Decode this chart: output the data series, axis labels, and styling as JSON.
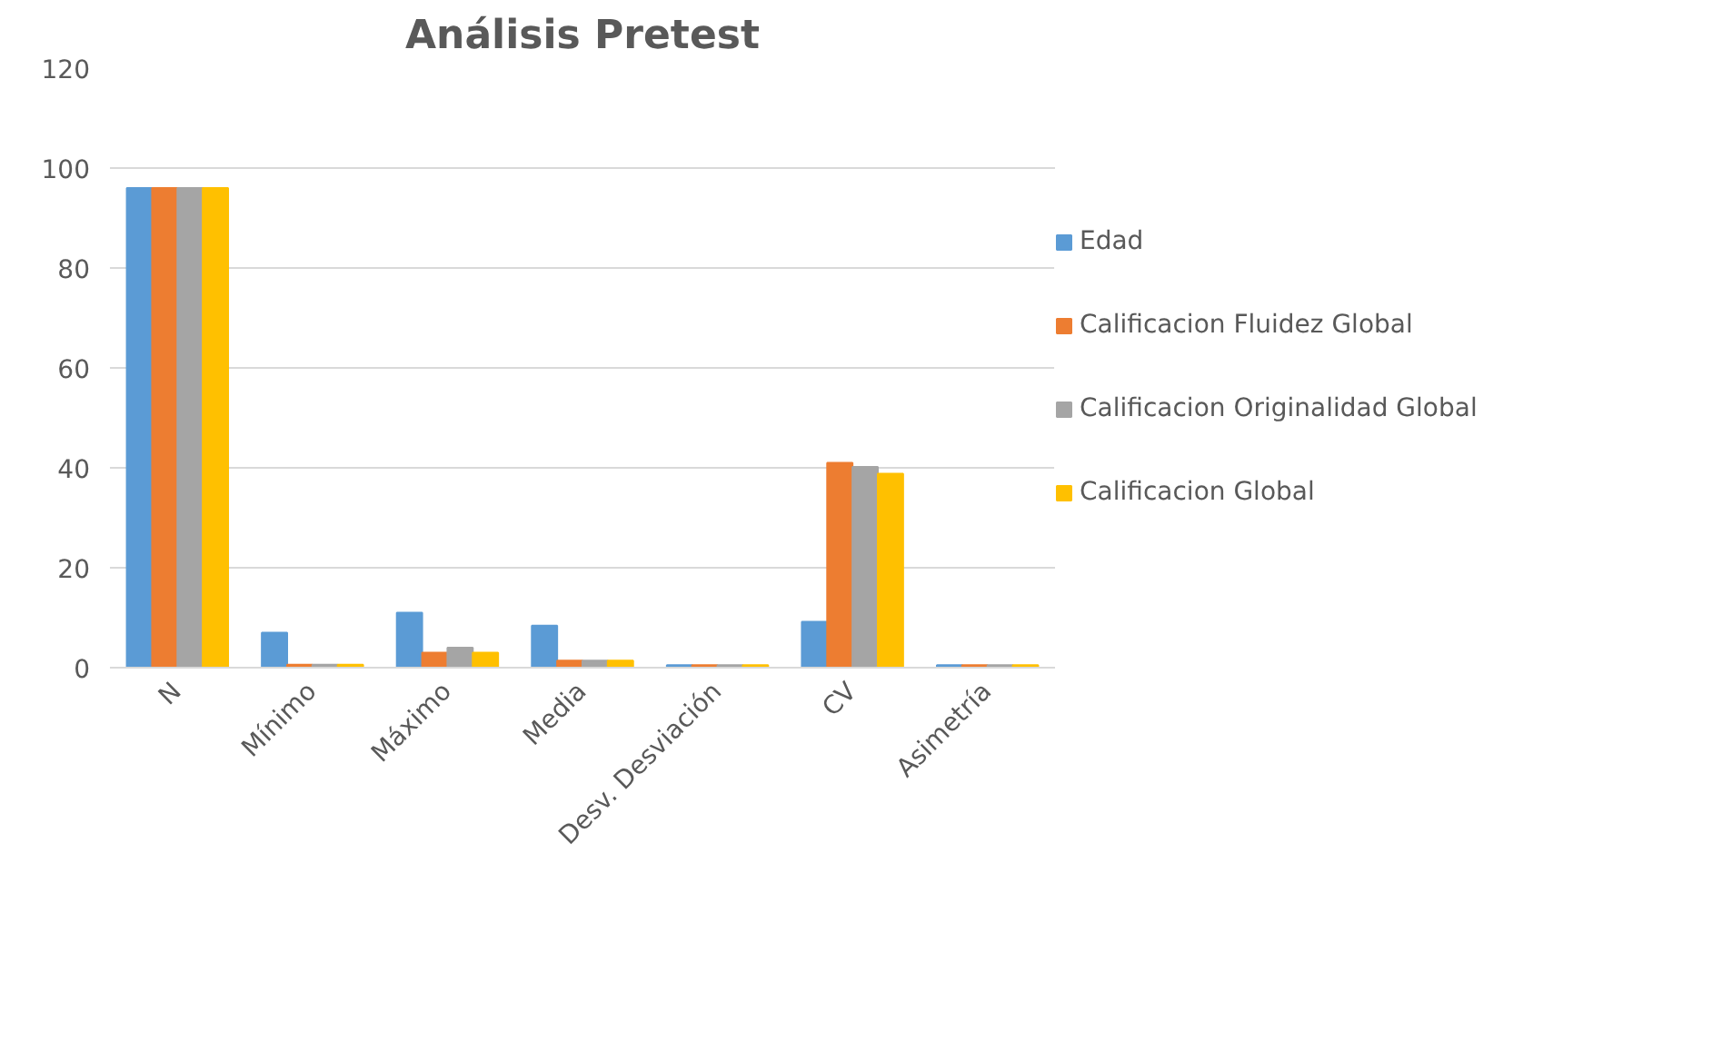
{
  "chart_data": {
    "type": "bar",
    "title": "Análisis Pretest",
    "categories": [
      "N",
      "Mínimo",
      "Máximo",
      "Media",
      "Desv. Desviación",
      "CV",
      "Asimetría"
    ],
    "series": [
      {
        "name": "Edad",
        "color": "#5b9bd5",
        "values": [
          96,
          7,
          11,
          8.4,
          0.5,
          9.2,
          0.5
        ]
      },
      {
        "name": "Calificacion Fluidez Global",
        "color": "#ed7d31",
        "values": [
          96,
          0.6,
          3,
          1.4,
          0.5,
          41,
          0.5
        ]
      },
      {
        "name": "Calificacion Originalidad Global",
        "color": "#a5a5a5",
        "values": [
          96,
          0.6,
          4,
          1.4,
          0.5,
          40.2,
          0.5
        ]
      },
      {
        "name": "Calificacion Global",
        "color": "#ffc000",
        "values": [
          96,
          0.6,
          3,
          1.4,
          0.5,
          38.8,
          0.5
        ]
      }
    ],
    "ylim": [
      0,
      120
    ],
    "yticks": [
      0,
      20,
      40,
      60,
      80,
      100,
      120
    ],
    "grid": "y",
    "legend": "right"
  }
}
